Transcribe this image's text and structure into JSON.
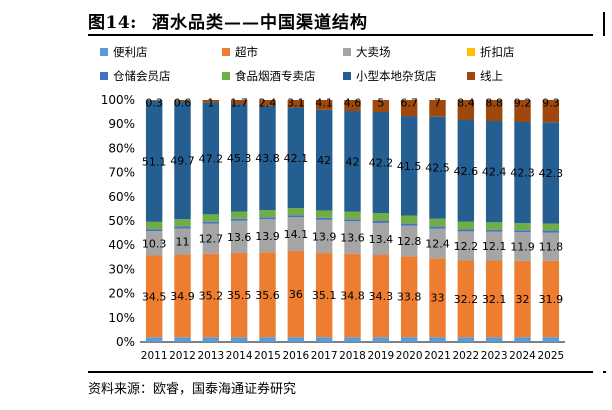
{
  "figure": {
    "label": "图14:",
    "title": "酒水品类——中国渠道结构",
    "source": "资料来源：欧睿，国泰海通证券研究"
  },
  "chart_data": {
    "type": "bar",
    "stacked": true,
    "categories": [
      "2011",
      "2012",
      "2013",
      "2014",
      "2015",
      "2016",
      "2017",
      "2018",
      "2019",
      "2020",
      "2021",
      "2022",
      "2023",
      "2024",
      "2025"
    ],
    "ylim": [
      0,
      100
    ],
    "yticks": [
      "0%",
      "10%",
      "20%",
      "30%",
      "40%",
      "50%",
      "60%",
      "70%",
      "80%",
      "90%",
      "100%"
    ],
    "grid": false,
    "legend_position": "top",
    "series": [
      {
        "name": "便利店",
        "color": "#5B9BD5",
        "values": [
          2.0,
          2.0,
          2.0,
          2.0,
          2.0,
          2.0,
          2.0,
          2.0,
          2.0,
          2.0,
          2.0,
          2.0,
          2.0,
          2.0,
          2.0
        ],
        "labels": null
      },
      {
        "name": "超市",
        "color": "#ED7D31",
        "values": [
          34.5,
          34.9,
          35.2,
          35.5,
          35.6,
          36,
          35.1,
          34.8,
          34.3,
          33.8,
          33,
          32.2,
          32.1,
          32,
          31.9
        ],
        "labels": [
          "34.5",
          "34.9",
          "35.2",
          "35.5",
          "35.6",
          "36",
          "35.1",
          "34.8",
          "34.3",
          "33.8",
          "33",
          "32.2",
          "32.1",
          "32",
          "31.9"
        ]
      },
      {
        "name": "大卖场",
        "color": "#A5A5A5",
        "values": [
          10.3,
          11,
          12.7,
          13.6,
          13.9,
          14.1,
          13.9,
          13.6,
          13.4,
          12.8,
          12.4,
          12.2,
          12.1,
          11.9,
          11.8
        ],
        "labels": [
          "10.3",
          "11",
          "12.7",
          "13.6",
          "13.9",
          "14.1",
          "13.9",
          "13.6",
          "13.4",
          "12.8",
          "12.4",
          "12.2",
          "12.1",
          "11.9",
          "11.8"
        ]
      },
      {
        "name": "折扣店",
        "color": "#FFC000",
        "values": [
          0,
          0,
          0,
          0,
          0,
          0,
          0,
          0,
          0,
          0,
          0,
          0,
          0,
          0,
          0
        ],
        "labels": null
      },
      {
        "name": "仓储会员店",
        "color": "#4472C4",
        "values": [
          0.8,
          0.8,
          0.8,
          0.8,
          0.8,
          0.8,
          0.8,
          0.8,
          0.8,
          0.8,
          0.8,
          0.8,
          0.8,
          0.8,
          0.8
        ],
        "labels": null
      },
      {
        "name": "食品烟酒专卖店",
        "color": "#70AD47",
        "values": [
          3.1,
          3.1,
          3.1,
          3.1,
          3.0,
          3.0,
          3.1,
          3.2,
          3.3,
          3.4,
          3.4,
          3.3,
          3.1,
          3.0,
          2.9
        ],
        "labels": null
      },
      {
        "name": "小型本地杂货店",
        "color": "#255E91",
        "values": [
          51.1,
          49.7,
          47.2,
          45.3,
          43.8,
          42.1,
          42,
          42,
          42.2,
          41.5,
          42.5,
          42.6,
          42.4,
          42.3,
          42.3
        ],
        "labels": [
          "51.1",
          "49.7",
          "47.2",
          "45.3",
          "43.8",
          "42.1",
          "42",
          "42",
          "42.2",
          "41.5",
          "42.5",
          "42.6",
          "42.4",
          "42.3",
          "42.3"
        ]
      },
      {
        "name": "线上",
        "color": "#9E480E",
        "values": [
          0.3,
          0.6,
          1,
          1.7,
          2.4,
          3.1,
          4.1,
          4.6,
          5,
          6.7,
          7,
          8.4,
          8.8,
          9.2,
          9.3
        ],
        "labels": [
          "0.3",
          "0.6",
          "1",
          "1.7",
          "2.4",
          "3.1",
          "4.1",
          "4.6",
          "5",
          "6.7",
          "7",
          "8.4",
          "8.8",
          "9.2",
          "9.3"
        ]
      }
    ]
  }
}
